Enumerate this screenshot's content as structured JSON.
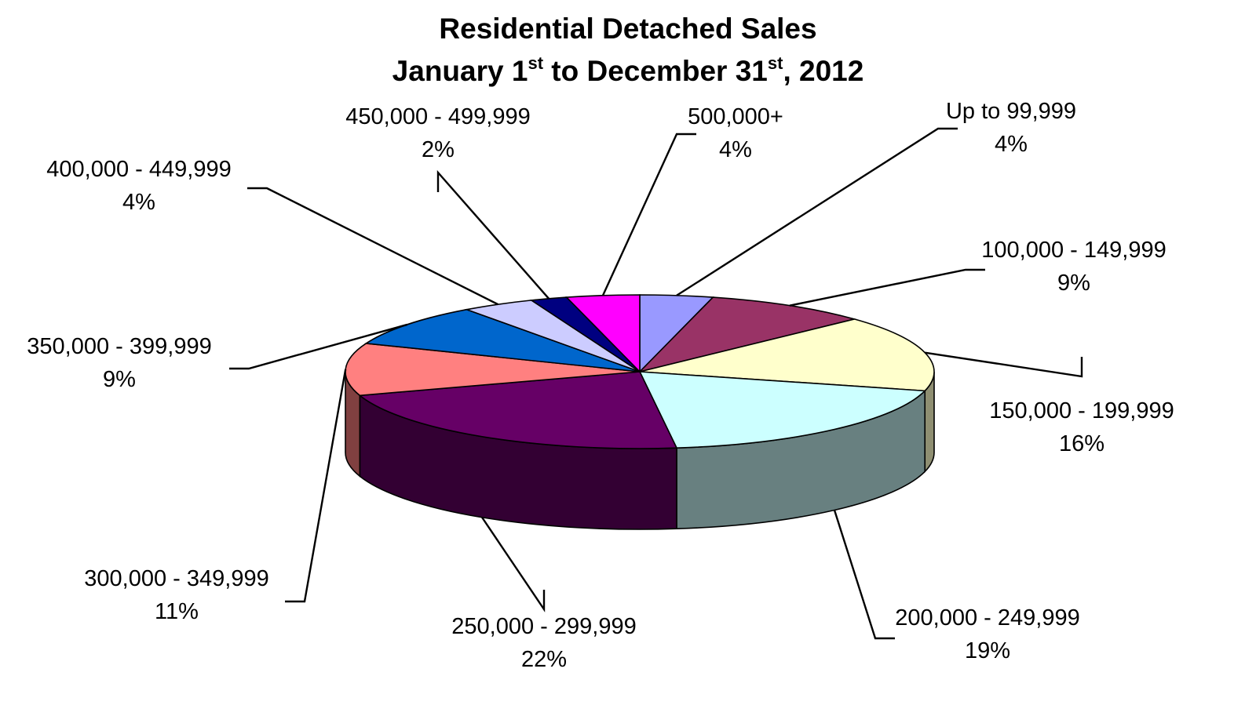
{
  "chart_data": {
    "type": "pie",
    "style": "3d",
    "title": {
      "line1": "Residential Detached Sales",
      "line2_parts": [
        "January 1",
        "st",
        " to December 31",
        "st",
        ", 2012"
      ]
    },
    "slices": [
      {
        "label": "Up to 99,999",
        "value": 4,
        "pct": "4%",
        "color": "#9999ff",
        "side": "#6b6bb3"
      },
      {
        "label": "100,000 - 149,999",
        "value": 9,
        "pct": "9%",
        "color": "#993366",
        "side": "#6b2447"
      },
      {
        "label": "150,000 - 199,999",
        "value": 16,
        "pct": "16%",
        "color": "#ffffcc",
        "side": "#8f8f72"
      },
      {
        "label": "200,000 - 249,999",
        "value": 19,
        "pct": "19%",
        "color": "#ccffff",
        "side": "#688080"
      },
      {
        "label": "250,000 - 299,999",
        "value": 22,
        "pct": "22%",
        "color": "#660066",
        "side": "#330033"
      },
      {
        "label": "300,000 - 349,999",
        "value": 11,
        "pct": "11%",
        "color": "#ff8080",
        "side": "#804040"
      },
      {
        "label": "350,000 - 399,999",
        "value": 9,
        "pct": "9%",
        "color": "#0066cc",
        "side": "#003366"
      },
      {
        "label": "400,000 - 449,999",
        "value": 4,
        "pct": "4%",
        "color": "#ccccff",
        "side": "#8080a0"
      },
      {
        "label": "450,000 - 499,999",
        "value": 2,
        "pct": "2%",
        "color": "#000080",
        "side": "#000040"
      },
      {
        "label": "500,000+",
        "value": 4,
        "pct": "4%",
        "color": "#ff00ff",
        "side": "#800080"
      }
    ]
  }
}
